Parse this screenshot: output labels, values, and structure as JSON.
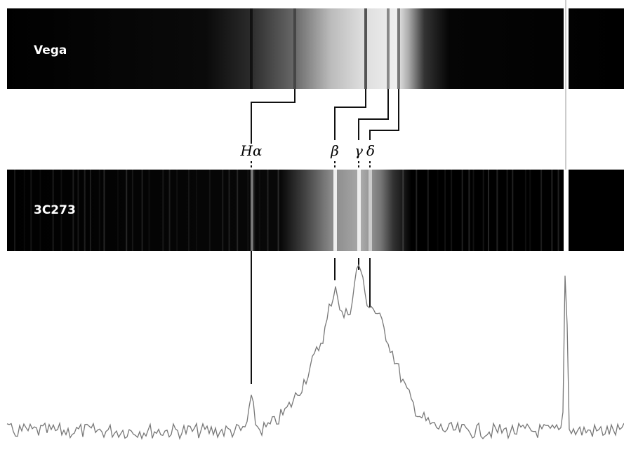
{
  "spectra": [
    {
      "label": "Vega"
    },
    {
      "label": "3C273"
    }
  ],
  "lines": [
    {
      "label": "Hα"
    },
    {
      "label": "β"
    },
    {
      "label": "γ"
    },
    {
      "label": "δ"
    }
  ]
}
